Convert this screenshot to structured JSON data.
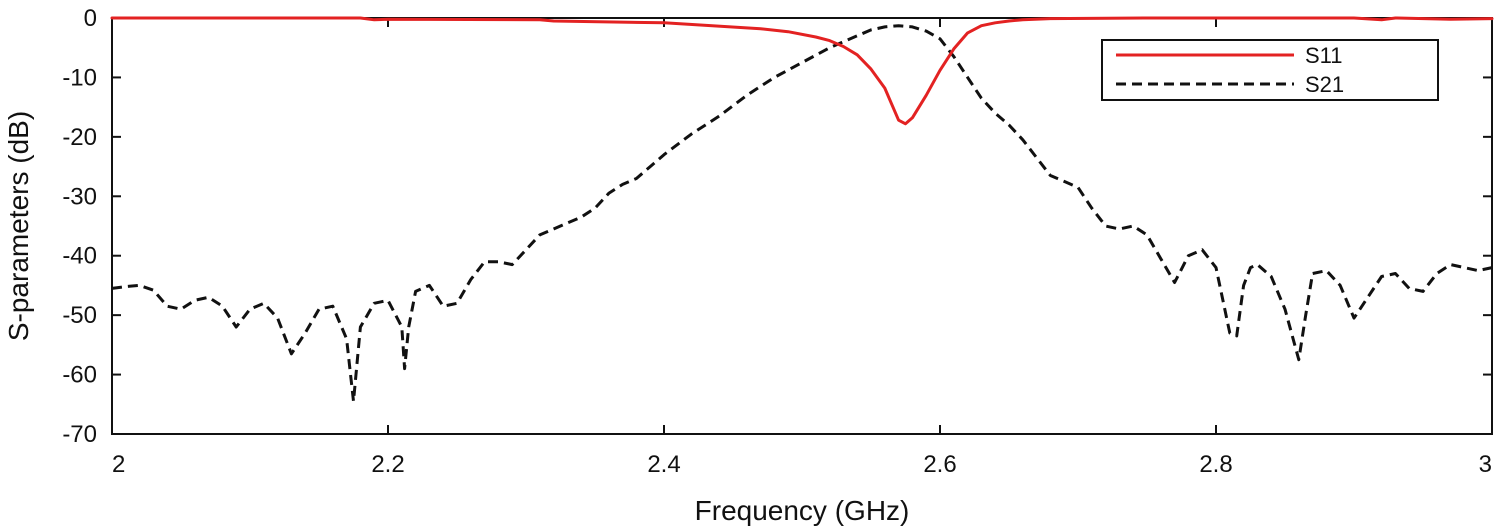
{
  "chart_data": {
    "type": "line",
    "xlabel": "Frequency (GHz)",
    "ylabel": "S-parameters (dB)",
    "xlim": [
      2,
      3
    ],
    "ylim": [
      -70,
      0
    ],
    "xticks": [
      2,
      2.2,
      2.4,
      2.6,
      2.8,
      3
    ],
    "xtick_labels": [
      "2",
      "2.2",
      "2.4",
      "2.6",
      "2.8",
      "3"
    ],
    "yticks": [
      0,
      -10,
      -20,
      -30,
      -40,
      -50,
      -60,
      -70
    ],
    "ytick_labels": [
      "0",
      "-10",
      "-20",
      "-30",
      "-40",
      "-50",
      "-60",
      "-70"
    ],
    "grid": false,
    "legend_position": "top-right",
    "series": [
      {
        "name": "S11",
        "color": "#e32222",
        "style": "solid",
        "x": [
          2.0,
          2.18,
          2.19,
          2.2,
          2.31,
          2.32,
          2.4,
          2.47,
          2.49,
          2.51,
          2.52,
          2.53,
          2.54,
          2.55,
          2.56,
          2.565,
          2.57,
          2.575,
          2.58,
          2.59,
          2.6,
          2.61,
          2.62,
          2.63,
          2.64,
          2.65,
          2.66,
          2.68,
          2.75,
          2.8,
          2.9,
          2.92,
          2.93,
          2.97,
          3.0
        ],
        "y": [
          0,
          0,
          -0.3,
          -0.2,
          -0.3,
          -0.5,
          -0.8,
          -1.8,
          -2.3,
          -3.2,
          -3.8,
          -4.8,
          -6.2,
          -8.6,
          -11.8,
          -14.5,
          -17.2,
          -17.8,
          -16.8,
          -13.0,
          -8.8,
          -5.2,
          -2.5,
          -1.3,
          -0.8,
          -0.5,
          -0.3,
          -0.1,
          0,
          0,
          0,
          -0.3,
          0,
          -0.2,
          -0.1
        ]
      },
      {
        "name": "S21",
        "color": "#111111",
        "style": "dashed",
        "x": [
          2.0,
          2.01,
          2.02,
          2.03,
          2.04,
          2.05,
          2.06,
          2.07,
          2.08,
          2.09,
          2.1,
          2.11,
          2.12,
          2.13,
          2.14,
          2.15,
          2.16,
          2.17,
          2.175,
          2.18,
          2.19,
          2.2,
          2.21,
          2.212,
          2.215,
          2.22,
          2.23,
          2.24,
          2.25,
          2.26,
          2.27,
          2.28,
          2.29,
          2.3,
          2.31,
          2.32,
          2.33,
          2.34,
          2.35,
          2.36,
          2.37,
          2.38,
          2.39,
          2.4,
          2.42,
          2.44,
          2.46,
          2.48,
          2.5,
          2.52,
          2.54,
          2.55,
          2.56,
          2.57,
          2.58,
          2.59,
          2.6,
          2.61,
          2.62,
          2.63,
          2.64,
          2.65,
          2.66,
          2.67,
          2.68,
          2.69,
          2.7,
          2.71,
          2.72,
          2.73,
          2.74,
          2.75,
          2.76,
          2.77,
          2.78,
          2.79,
          2.8,
          2.81,
          2.815,
          2.82,
          2.825,
          2.83,
          2.84,
          2.85,
          2.86,
          2.865,
          2.87,
          2.88,
          2.89,
          2.9,
          2.91,
          2.92,
          2.93,
          2.94,
          2.95,
          2.96,
          2.97,
          2.98,
          2.99,
          3.0
        ],
        "y": [
          -45.5,
          -45.2,
          -45.0,
          -45.8,
          -48.5,
          -49.0,
          -47.5,
          -47.0,
          -48.5,
          -52.0,
          -49.0,
          -48.0,
          -50.5,
          -56.5,
          -53.0,
          -49.0,
          -48.5,
          -54.0,
          -64.5,
          -52.0,
          -48.0,
          -47.5,
          -52.0,
          -59.0,
          -52.0,
          -46.0,
          -45.0,
          -48.5,
          -48.0,
          -44.0,
          -41.0,
          -41.0,
          -41.5,
          -39.0,
          -36.5,
          -35.5,
          -34.5,
          -33.5,
          -32.0,
          -29.5,
          -28.0,
          -27.0,
          -25.0,
          -23.0,
          -19.5,
          -16.5,
          -13.0,
          -10.0,
          -7.5,
          -5.0,
          -3.0,
          -2.0,
          -1.5,
          -1.3,
          -1.5,
          -2.2,
          -3.5,
          -6.5,
          -10.0,
          -13.5,
          -16.0,
          -18.0,
          -20.5,
          -23.5,
          -26.5,
          -27.5,
          -28.5,
          -32.0,
          -35.0,
          -35.5,
          -35.0,
          -36.5,
          -40.5,
          -44.5,
          -40.0,
          -39.0,
          -42.0,
          -53.0,
          -53.5,
          -45.0,
          -42.0,
          -41.5,
          -43.5,
          -49.0,
          -57.5,
          -50.0,
          -43.0,
          -42.5,
          -45.0,
          -50.5,
          -47.0,
          -43.5,
          -43.0,
          -45.5,
          -46.0,
          -43.0,
          -41.5,
          -42.0,
          -42.5,
          -42.0
        ]
      }
    ]
  }
}
